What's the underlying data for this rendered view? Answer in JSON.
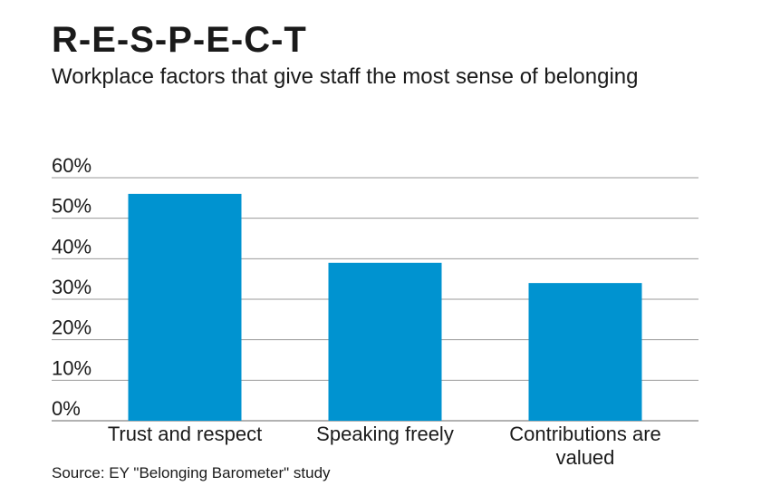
{
  "header": {
    "title": "R-E-S-P-E-C-T",
    "subtitle": "Workplace factors that give staff the most sense of belonging"
  },
  "footer": {
    "source": "Source: EY \"Belonging Barometer\" study"
  },
  "colors": {
    "bar": "#0093d0",
    "grid": "#999999",
    "text": "#1a1a1a"
  },
  "chart_data": {
    "type": "bar",
    "categories": [
      [
        "Trust and respect"
      ],
      [
        "Speaking freely"
      ],
      [
        "Contributions are",
        "valued"
      ]
    ],
    "values": [
      56,
      39,
      34
    ],
    "yticks": [
      "0%",
      "10%",
      "20%",
      "30%",
      "40%",
      "50%",
      "60%"
    ],
    "ylim": [
      0,
      60
    ],
    "grid": true,
    "legend": "none"
  }
}
